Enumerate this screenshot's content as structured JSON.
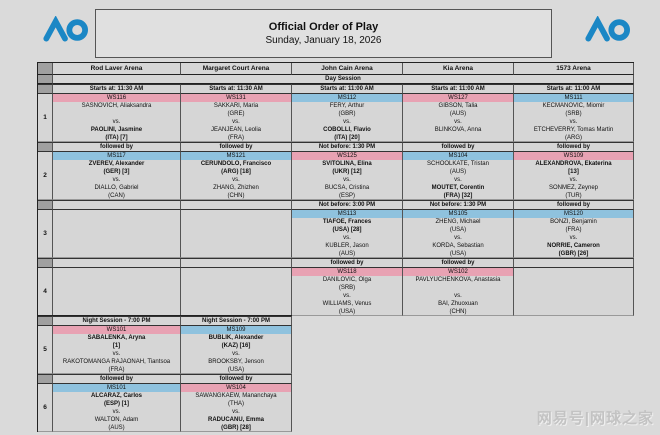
{
  "header": {
    "title": "Official Order of Play",
    "subtitle": "Sunday, January 18, 2026",
    "logo_alt": "AO"
  },
  "watermark": "网易号|网球之家",
  "labels": {
    "vs": "vs."
  },
  "colors": {
    "womens_match": "#e8a2b3",
    "mens_match": "#8fc2de",
    "logo_blue": "#1b87c5"
  },
  "schedule": {
    "arenas": [
      "Rod Laver Arena",
      "Margaret Court Arena",
      "John Cain Arena",
      "Kia Arena",
      "1573 Arena"
    ],
    "day_session_label": "Day Session",
    "slots": [
      {
        "num": "1",
        "cols": 5,
        "headers": [
          "Starts at: 11:30 AM",
          "Starts at: 11:30 AM",
          "Starts at: 11:00 AM",
          "Starts at: 11:00 AM",
          "Starts at: 11:00 AM"
        ],
        "matches": [
          {
            "id": "WS116",
            "p1": {
              "name": "SASNOVICH, Aliaksandra",
              "info": "",
              "bold": false
            },
            "p2": {
              "name": "PAOLINI, Jasmine",
              "info": "(ITA) [7]",
              "bold": true
            }
          },
          {
            "id": "WS131",
            "p1": {
              "name": "SAKKARI, Maria",
              "info": "(GRE)",
              "bold": false
            },
            "p2": {
              "name": "JEANJEAN, Leolia",
              "info": "(FRA)",
              "bold": false
            }
          },
          {
            "id": "MS112",
            "p1": {
              "name": "FERY, Arthur",
              "info": "(GBR)",
              "bold": false
            },
            "p2": {
              "name": "COBOLLI, Flavio",
              "info": "(ITA) [20]",
              "bold": true
            }
          },
          {
            "id": "WS127",
            "p1": {
              "name": "GIBSON, Talia",
              "info": "(AUS)",
              "bold": false
            },
            "p2": {
              "name": "BLINKOVA, Anna",
              "info": "",
              "bold": false
            }
          },
          {
            "id": "MS111",
            "p1": {
              "name": "KECMANOVIC, Miomir",
              "info": "(SRB)",
              "bold": false
            },
            "p2": {
              "name": "ETCHEVERRY, Tomas Martin",
              "info": "(ARG)",
              "bold": false
            }
          }
        ]
      },
      {
        "num": "2",
        "cols": 5,
        "headers": [
          "followed by",
          "followed by",
          "Not before: 1:30 PM",
          "followed by",
          "followed by"
        ],
        "matches": [
          {
            "id": "MS117",
            "p1": {
              "name": "ZVEREV, Alexander",
              "info": "(GER) [3]",
              "bold": true
            },
            "p2": {
              "name": "DIALLO, Gabriel",
              "info": "(CAN)",
              "bold": false
            }
          },
          {
            "id": "MS121",
            "p1": {
              "name": "CERUNDOLO, Francisco",
              "info": "(ARG) [18]",
              "bold": true
            },
            "p2": {
              "name": "ZHANG, Zhizhen",
              "info": "(CHN)",
              "bold": false
            }
          },
          {
            "id": "WS125",
            "p1": {
              "name": "SVITOLINA, Elina",
              "info": "(UKR) [12]",
              "bold": true
            },
            "p2": {
              "name": "BUCSA, Cristina",
              "info": "(ESP)",
              "bold": false
            }
          },
          {
            "id": "MS104",
            "p1": {
              "name": "SCHOOLKATE, Tristan",
              "info": "(AUS)",
              "bold": false
            },
            "p2": {
              "name": "MOUTET, Corentin",
              "info": "(FRA) [32]",
              "bold": true
            }
          },
          {
            "id": "WS109",
            "p1": {
              "name": "ALEXANDROVA, Ekaterina",
              "info": "[13]",
              "bold": true
            },
            "p2": {
              "name": "SONMEZ, Zeynep",
              "info": "(TUR)",
              "bold": false
            }
          }
        ]
      },
      {
        "num": "3",
        "cols": 5,
        "headers": [
          "",
          "",
          "Not before: 3:00 PM",
          "Not before: 1:30 PM",
          "followed by"
        ],
        "matches": [
          null,
          null,
          {
            "id": "MS113",
            "p1": {
              "name": "TIAFOE, Frances",
              "info": "(USA) [28]",
              "bold": true
            },
            "p2": {
              "name": "KUBLER, Jason",
              "info": "(AUS)",
              "bold": false
            }
          },
          {
            "id": "MS105",
            "p1": {
              "name": "ZHENG, Michael",
              "info": "(USA)",
              "bold": false
            },
            "p2": {
              "name": "KORDA, Sebastian",
              "info": "(USA)",
              "bold": false
            }
          },
          {
            "id": "MS120",
            "p1": {
              "name": "BONZI, Benjamin",
              "info": "(FRA)",
              "bold": false
            },
            "p2": {
              "name": "NORRIE, Cameron",
              "info": "(GBR) [26]",
              "bold": true
            }
          }
        ]
      },
      {
        "num": "4",
        "cols": 5,
        "headers": [
          "",
          "",
          "followed by",
          "followed by",
          ""
        ],
        "matches": [
          null,
          null,
          {
            "id": "WS118",
            "p1": {
              "name": "DANILOVIC, Olga",
              "info": "(SRB)",
              "bold": false
            },
            "p2": {
              "name": "WILLIAMS, Venus",
              "info": "(USA)",
              "bold": false
            }
          },
          {
            "id": "WS102",
            "p1": {
              "name": "PAVLYUCHENKOVA, Anastasia",
              "info": "",
              "bold": false
            },
            "p2": {
              "name": "BAI, Zhuoxuan",
              "info": "(CHN)",
              "bold": false
            }
          },
          null
        ]
      },
      {
        "num": "5",
        "cols": 2,
        "headers": [
          "Night Session - 7:00 PM",
          "Night Session - 7:00 PM"
        ],
        "matches": [
          {
            "id": "WS101",
            "p1": {
              "name": "SABALENKA, Aryna",
              "info": "[1]",
              "bold": true
            },
            "p2": {
              "name": "RAKOTOMANGA RAJAONAH, Tiantsoa",
              "info": "(FRA)",
              "bold": false
            }
          },
          {
            "id": "MS109",
            "p1": {
              "name": "BUBLIK, Alexander",
              "info": "(KAZ) [16]",
              "bold": true
            },
            "p2": {
              "name": "BROOKSBY, Jenson",
              "info": "(USA)",
              "bold": false
            }
          }
        ]
      },
      {
        "num": "6",
        "cols": 2,
        "headers": [
          "followed by",
          "followed by"
        ],
        "matches": [
          {
            "id": "MS101",
            "p1": {
              "name": "ALCARAZ, Carlos",
              "info": "(ESP) [1]",
              "bold": true
            },
            "p2": {
              "name": "WALTON, Adam",
              "info": "(AUS)",
              "bold": false
            }
          },
          {
            "id": "WS104",
            "p1": {
              "name": "SAWANGKAEW, Mananchaya",
              "info": "(THA)",
              "bold": false
            },
            "p2": {
              "name": "RADUCANU, Emma",
              "info": "(GBR) [28]",
              "bold": true
            }
          }
        ]
      }
    ]
  }
}
